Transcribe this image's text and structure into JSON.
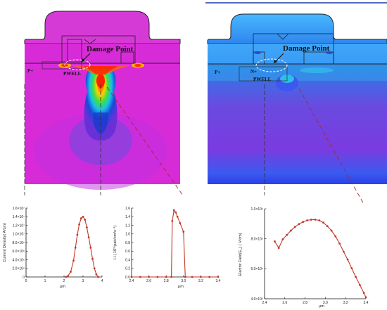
{
  "left_sim": {
    "damage_label": "Damage Point",
    "p_plus": "P+",
    "pwell": "PWELL"
  },
  "right_sim": {
    "damage_label": "Damage Point",
    "p_plus": "P+",
    "n_plus": "N+",
    "pwell": "PWELL"
  },
  "colors": {
    "curve": "#c0392b",
    "guide": "#a52a2a",
    "left_bg": "#d82bd8",
    "right_bg": "#2d6ee0"
  },
  "chart_data": [
    {
      "type": "line",
      "xlabel": "μm",
      "ylabel": "Current Density( A/cm)",
      "xlim": [
        0,
        4
      ],
      "ylim": [
        0,
        16000000.0
      ],
      "xticks": [
        "0",
        "1",
        "2",
        "3",
        "4"
      ],
      "yticks": [
        "0",
        "2.0×10⁶",
        "4.0×10⁶",
        "6.0×10⁶",
        "8.0×10⁶",
        "1.0×10⁷",
        "1.2×10⁷",
        "1.4×10⁷",
        "1.6×10⁷"
      ],
      "x": [
        2.1,
        2.2,
        2.35,
        2.5,
        2.6,
        2.7,
        2.8,
        2.9,
        3.0,
        3.1,
        3.2,
        3.3,
        3.4,
        3.5,
        3.6,
        3.7,
        3.8
      ],
      "y": [
        0,
        200000.0,
        1200000.0,
        3800000.0,
        6800000.0,
        9800000.0,
        12200000.0,
        13600000.0,
        14000000.0,
        13300000.0,
        11500000.0,
        9200000.0,
        6800000.0,
        4200000.0,
        2000000.0,
        600000.0,
        0
      ]
    },
    {
      "type": "line",
      "xlabel": "μm",
      "ylabel": "I.I.( 10¹⁵pair/cm³s⁻¹)",
      "xlim": [
        2.4,
        3.4
      ],
      "ylim": [
        0,
        1.6
      ],
      "xticks": [
        "2.4",
        "2.6",
        "2.8",
        "3.0",
        "3.2",
        "3.4"
      ],
      "yticks": [
        "0.0",
        "0.2",
        "0.4",
        "0.6",
        "0.8",
        "1.0",
        "1.2",
        "1.4",
        "1.6"
      ],
      "x": [
        2.4,
        2.5,
        2.6,
        2.7,
        2.8,
        2.86,
        2.87,
        2.89,
        2.91,
        2.93,
        2.96,
        3.0,
        3.02,
        3.1,
        3.2,
        3.3,
        3.4
      ],
      "y": [
        0,
        0,
        0,
        0,
        0,
        0,
        1.3,
        1.55,
        1.5,
        1.4,
        1.25,
        1.05,
        0,
        0,
        0,
        0,
        0
      ]
    },
    {
      "type": "line",
      "xlabel": "μm",
      "ylabel": "Electric Field(E_)   ( V/cm)",
      "xlim": [
        2.4,
        3.4
      ],
      "ylim": [
        380000.0,
        1000000.0
      ],
      "xticks": [
        "2.4",
        "2.6",
        "2.8",
        "3.0",
        "3.2",
        "3.4"
      ],
      "yticks": [
        "4.0×10⁵",
        "6.0×10⁵",
        "8.0×10⁵",
        "1.0×10⁶"
      ],
      "x": [
        2.5,
        2.54,
        2.58,
        2.62,
        2.66,
        2.7,
        2.74,
        2.78,
        2.82,
        2.86,
        2.9,
        2.94,
        2.98,
        3.02,
        3.06,
        3.1,
        3.14,
        3.18,
        3.22,
        3.26,
        3.3,
        3.34,
        3.38,
        3.4
      ],
      "y": [
        775000.0,
        730000.0,
        790000.0,
        820000.0,
        850000.0,
        875000.0,
        895000.0,
        910000.0,
        920000.0,
        925000.0,
        925000.0,
        920000.0,
        905000.0,
        880000.0,
        850000.0,
        810000.0,
        760000.0,
        705000.0,
        650000.0,
        590000.0,
        530000.0,
        475000.0,
        420000.0,
        390000.0
      ]
    }
  ]
}
